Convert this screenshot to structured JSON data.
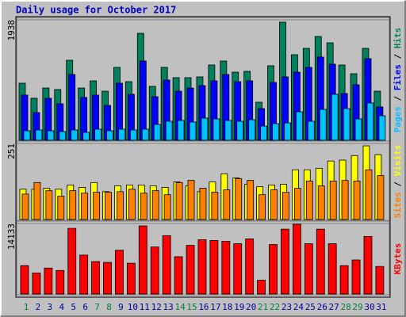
{
  "chart_data": [
    {
      "type": "bar",
      "title": "Daily usage for October 2017",
      "legend_separator": "/",
      "ylim": [
        0,
        1938
      ],
      "yticks": [
        1938
      ],
      "series": [
        {
          "name": "Hits",
          "color": "#00805c",
          "values": [
            918,
            676,
            841,
            816,
            1288,
            841,
            956,
            790,
            1173,
            943,
            1721,
            867,
            1173,
            1007,
            1007,
            1020,
            1211,
            1275,
            1096,
            1109,
            612,
            1199,
            1900,
            1377,
            1479,
            1670,
            1568,
            1211,
            1071,
            1479,
            790
          ]
        },
        {
          "name": "Files",
          "color": "#0000ff",
          "values": [
            727,
            446,
            676,
            587,
            1058,
            689,
            727,
            561,
            918,
            740,
            1275,
            701,
            969,
            790,
            841,
            880,
            956,
            1058,
            943,
            956,
            510,
            931,
            1020,
            1096,
            1173,
            1339,
            1224,
            752,
            893,
            1313,
            536
          ]
        },
        {
          "name": "Pages",
          "color": "#00c0ff",
          "values": [
            153,
            166,
            153,
            140,
            166,
            128,
            179,
            153,
            179,
            166,
            179,
            255,
            306,
            319,
            293,
            357,
            344,
            319,
            306,
            331,
            229,
            268,
            280,
            459,
            306,
            497,
            740,
            510,
            344,
            600,
            395
          ]
        }
      ]
    },
    {
      "type": "bar",
      "legend_separator": "/",
      "ylim": [
        0,
        251
      ],
      "yticks": [
        251
      ],
      "series": [
        {
          "name": "Visits",
          "color": "#ffff00",
          "values": [
            100,
            100,
            103,
            100,
            114,
            106,
            122,
            92,
            111,
            114,
            114,
            111,
            106,
            124,
            111,
            92,
            124,
            151,
            137,
            116,
            108,
            114,
            116,
            164,
            164,
            169,
            193,
            196,
            211,
            243,
            214
          ]
        },
        {
          "name": "Sites",
          "color": "#ff8000",
          "values": [
            84,
            122,
            95,
            77,
            95,
            87,
            90,
            90,
            92,
            100,
            87,
            95,
            82,
            122,
            129,
            103,
            90,
            98,
            135,
            129,
            82,
            98,
            90,
            103,
            127,
            111,
            127,
            129,
            127,
            164,
            145
          ]
        }
      ]
    },
    {
      "type": "bar",
      "ylim": [
        0,
        14133
      ],
      "yticks": [
        14133
      ],
      "categories": [
        "1",
        "2",
        "3",
        "4",
        "5",
        "6",
        "7",
        "8",
        "9",
        "10",
        "11",
        "12",
        "13",
        "14",
        "15",
        "16",
        "17",
        "18",
        "19",
        "20",
        "21",
        "22",
        "23",
        "24",
        "25",
        "26",
        "27",
        "28",
        "29",
        "30",
        "31"
      ],
      "category_colors": [
        "#008040",
        "#0000a0",
        "#0000a0",
        "#0000a0",
        "#0000a0",
        "#0000a0",
        "#008040",
        "#008040",
        "#0000a0",
        "#0000a0",
        "#0000a0",
        "#0000a0",
        "#0000a0",
        "#008040",
        "#008040",
        "#0000a0",
        "#0000a0",
        "#0000a0",
        "#0000a0",
        "#0000a0",
        "#008040",
        "#008040",
        "#0000a0",
        "#0000a0",
        "#0000a0",
        "#0000a0",
        "#0000a0",
        "#008040",
        "#008040",
        "#0000a0",
        "#0000a0"
      ],
      "series": [
        {
          "name": "KBytes",
          "color": "#ff0000",
          "values": [
            5686,
            4224,
            5198,
            4711,
            13158,
            7797,
            6498,
            6335,
            8772,
            6172,
            13646,
            9422,
            11696,
            7472,
            9747,
            10884,
            10721,
            10560,
            10072,
            11047,
            2762,
            9909,
            12996,
            13971,
            10072,
            12996,
            10072,
            5686,
            6823,
            11534,
            5523
          ]
        }
      ]
    }
  ]
}
